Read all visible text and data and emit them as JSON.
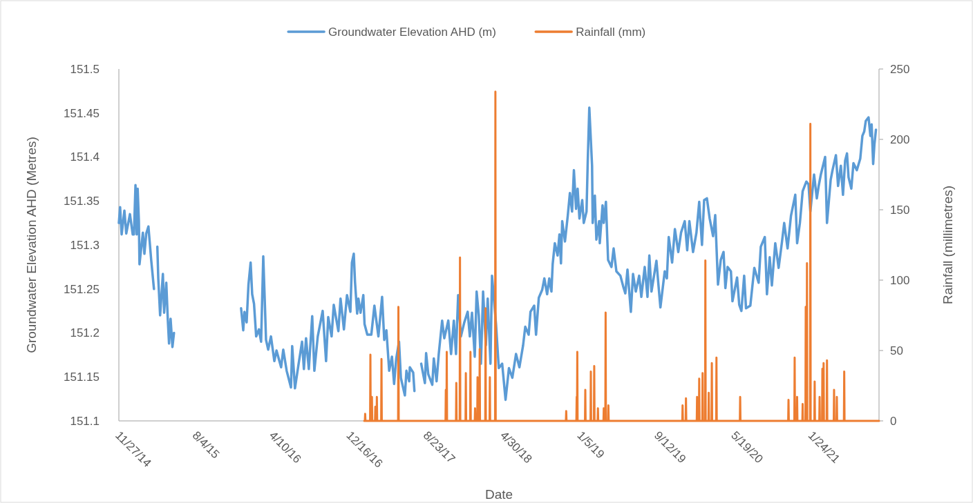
{
  "chart_data": {
    "type": "line",
    "xlabel": "Date",
    "ylabel": "Groundwater Elevation AHD (Metres)",
    "y2label": "Rainfall (millimetres)",
    "legend": "top",
    "xlim": [
      "2014-11-27",
      "2021-08-31"
    ],
    "xticks": [
      {
        "value": "2014-11-27",
        "label": "11/27/14"
      },
      {
        "value": "2015-08-04",
        "label": "8/4/15"
      },
      {
        "value": "2016-04-10",
        "label": "4/10/16"
      },
      {
        "value": "2016-12-16",
        "label": "12/16/16"
      },
      {
        "value": "2017-08-23",
        "label": "8/23/17"
      },
      {
        "value": "2018-04-30",
        "label": "4/30/18"
      },
      {
        "value": "2019-01-05",
        "label": "1/5/19"
      },
      {
        "value": "2019-09-12",
        "label": "9/12/19"
      },
      {
        "value": "2020-05-19",
        "label": "5/19/20"
      },
      {
        "value": "2021-01-24",
        "label": "1/24/21"
      }
    ],
    "ylim": [
      151.1,
      151.5
    ],
    "yticks": [
      151.1,
      151.15,
      151.2,
      151.25,
      151.3,
      151.35,
      151.4,
      151.45,
      151.5
    ],
    "y2lim": [
      0,
      250
    ],
    "y2ticks": [
      0,
      50,
      100,
      150,
      200,
      250
    ],
    "series": [
      {
        "name": "Groundwater Elevation AHD (m)",
        "color": "#5b9bd5",
        "x": [
          "2014-11-27",
          "2014-12-01",
          "2014-12-06",
          "2014-12-15",
          "2014-12-21",
          "2015-01-02",
          "2015-01-11",
          "2015-01-15",
          "2015-01-20",
          "2015-01-24",
          "2015-01-27",
          "2015-01-31",
          "2015-02-02",
          "2015-02-13",
          "2015-02-18",
          "2015-02-24",
          "2015-03-03",
          "2015-03-12",
          "2015-03-21",
          "2015-03-26",
          "2015-04-01",
          "2015-04-04",
          "2015-04-10",
          "2015-04-19",
          "2015-04-23",
          "2015-04-30",
          "2015-05-05",
          "2015-05-09",
          "2015-05-14",
          "2015-05-20",
          "2015-05-25",
          "2015-07-01",
          "2015-12-29",
          "2016-01-05",
          "2016-01-09",
          "2016-01-16",
          "2016-01-20",
          "2016-01-22",
          "2016-01-29",
          "2016-02-03",
          "2016-02-09",
          "2016-02-16",
          "2016-02-25",
          "2016-03-03",
          "2016-03-10",
          "2016-03-16",
          "2016-03-19",
          "2016-03-26",
          "2016-04-04",
          "2016-04-15",
          "2016-04-22",
          "2016-05-07",
          "2016-05-14",
          "2016-05-25",
          "2016-06-08",
          "2016-06-12",
          "2016-06-21",
          "2016-07-02",
          "2016-07-14",
          "2016-07-20",
          "2016-07-27",
          "2016-08-05",
          "2016-08-16",
          "2016-08-23",
          "2016-09-03",
          "2016-09-19",
          "2016-09-30",
          "2016-10-07",
          "2016-10-18",
          "2016-10-25",
          "2016-11-09",
          "2016-11-16",
          "2016-11-27",
          "2016-12-07",
          "2016-12-18",
          "2016-12-23",
          "2016-12-29",
          "2017-01-02",
          "2017-01-09",
          "2017-01-13",
          "2017-01-20",
          "2017-01-29",
          "2017-02-02",
          "2017-02-11",
          "2017-02-24",
          "2017-03-06",
          "2017-03-19",
          "2017-03-31",
          "2017-04-07",
          "2017-04-14",
          "2017-04-23",
          "2017-05-02",
          "2017-05-09",
          "2017-05-16",
          "2017-05-25",
          "2017-05-31",
          "2017-06-13",
          "2017-06-18",
          "2017-06-27",
          "2017-06-29",
          "2017-07-10",
          "2017-07-14",
          "2017-07-20",
          "2017-08-05",
          "2017-08-17",
          "2017-08-21",
          "2017-08-28",
          "2017-09-10",
          "2017-09-15",
          "2017-09-24",
          "2017-10-01",
          "2017-10-12",
          "2017-10-19",
          "2017-11-01",
          "2017-11-10",
          "2017-11-19",
          "2017-11-26",
          "2017-12-03",
          "2017-12-12",
          "2017-12-23",
          "2018-01-03",
          "2018-01-10",
          "2018-01-17",
          "2018-01-26",
          "2018-02-01",
          "2018-02-08",
          "2018-02-15",
          "2018-02-22",
          "2018-03-03",
          "2018-03-09",
          "2018-03-18",
          "2018-03-23",
          "2018-04-05",
          "2018-04-14",
          "2018-04-25",
          "2018-05-06",
          "2018-05-17",
          "2018-05-28",
          "2018-06-09",
          "2018-06-20",
          "2018-07-02",
          "2018-07-09",
          "2018-07-20",
          "2018-07-26",
          "2018-08-07",
          "2018-08-13",
          "2018-08-22",
          "2018-09-02",
          "2018-09-09",
          "2018-09-18",
          "2018-09-25",
          "2018-10-02",
          "2018-10-06",
          "2018-10-13",
          "2018-10-22",
          "2018-10-28",
          "2018-11-02",
          "2018-11-06",
          "2018-11-15",
          "2018-11-24",
          "2018-12-01",
          "2018-12-08",
          "2018-12-14",
          "2018-12-21",
          "2018-12-26",
          "2019-01-01",
          "2019-01-10",
          "2019-01-15",
          "2019-01-24",
          "2019-01-28",
          "2019-02-02",
          "2019-02-11",
          "2019-02-13",
          "2019-02-20",
          "2019-02-25",
          "2019-03-06",
          "2019-03-08",
          "2019-03-17",
          "2019-03-21",
          "2019-03-28",
          "2019-04-04",
          "2019-04-15",
          "2019-04-22",
          "2019-05-01",
          "2019-05-14",
          "2019-05-23",
          "2019-05-30",
          "2019-06-06",
          "2019-06-17",
          "2019-06-24",
          "2019-07-03",
          "2019-07-14",
          "2019-07-21",
          "2019-08-01",
          "2019-08-10",
          "2019-08-16",
          "2019-08-23",
          "2019-09-08",
          "2019-09-14",
          "2019-09-21",
          "2019-10-05",
          "2019-10-12",
          "2019-10-18",
          "2019-10-29",
          "2019-11-07",
          "2019-11-18",
          "2019-11-27",
          "2019-12-09",
          "2019-12-17",
          "2019-12-24",
          "2020-01-05",
          "2020-01-16",
          "2020-01-25",
          "2020-02-03",
          "2020-02-10",
          "2020-02-19",
          "2020-02-28",
          "2020-03-10",
          "2020-03-17",
          "2020-03-26",
          "2020-04-04",
          "2020-04-13",
          "2020-04-19",
          "2020-04-26",
          "2020-05-07",
          "2020-05-12",
          "2020-05-27",
          "2020-06-03",
          "2020-06-10",
          "2020-06-19",
          "2020-06-25",
          "2020-07-09",
          "2020-07-22",
          "2020-08-05",
          "2020-08-12",
          "2020-08-25",
          "2020-09-01",
          "2020-09-10",
          "2020-09-17",
          "2020-09-28",
          "2020-10-09",
          "2020-10-20",
          "2020-10-27",
          "2020-11-07",
          "2020-11-18",
          "2020-12-02",
          "2020-12-08",
          "2020-12-17",
          "2020-12-26",
          "2021-01-07",
          "2021-01-14",
          "2021-01-20",
          "2021-02-01",
          "2021-02-10",
          "2021-02-16",
          "2021-02-23",
          "2021-03-09",
          "2021-03-15",
          "2021-03-27",
          "2021-04-02",
          "2021-04-13",
          "2021-04-20",
          "2021-04-29",
          "2021-05-06",
          "2021-05-13",
          "2021-05-19",
          "2021-05-24",
          "2021-06-02",
          "2021-06-09",
          "2021-06-20",
          "2021-07-01",
          "2021-07-08",
          "2021-07-14",
          "2021-07-19",
          "2021-07-28",
          "2021-08-03",
          "2021-08-07",
          "2021-08-12",
          "2021-08-16",
          "2021-08-21"
        ],
        "values": [
          151.325,
          151.343,
          151.312,
          151.339,
          151.313,
          151.335,
          151.312,
          151.312,
          151.368,
          151.312,
          151.364,
          151.327,
          151.278,
          151.314,
          151.29,
          151.313,
          151.321,
          151.283,
          151.25,
          null,
          151.298,
          151.262,
          151.22,
          151.267,
          151.223,
          151.257,
          151.215,
          151.188,
          151.216,
          151.184,
          151.2,
          null,
          151.228,
          151.203,
          151.224,
          151.212,
          151.241,
          151.255,
          151.28,
          151.244,
          151.233,
          151.196,
          151.204,
          151.19,
          151.287,
          151.225,
          151.192,
          151.181,
          151.196,
          151.168,
          151.18,
          151.161,
          151.181,
          151.157,
          151.138,
          151.185,
          151.137,
          151.163,
          151.19,
          151.159,
          151.194,
          151.159,
          151.219,
          151.157,
          151.196,
          151.225,
          151.168,
          151.218,
          151.196,
          151.232,
          151.202,
          151.239,
          151.204,
          151.243,
          151.224,
          151.28,
          151.29,
          151.258,
          151.222,
          151.239,
          151.223,
          151.243,
          151.21,
          151.198,
          151.198,
          151.231,
          151.196,
          151.241,
          151.192,
          151.203,
          151.157,
          151.173,
          151.142,
          151.171,
          151.19,
          151.149,
          151.129,
          151.157,
          151.145,
          151.161,
          151.155,
          151.134,
          null,
          151.165,
          151.143,
          151.177,
          151.153,
          151.141,
          151.171,
          151.145,
          151.176,
          151.214,
          151.194,
          151.214,
          151.176,
          151.214,
          151.176,
          151.243,
          151.196,
          151.212,
          151.224,
          151.196,
          151.223,
          151.173,
          151.247,
          151.22,
          151.165,
          151.247,
          151.186,
          151.239,
          151.165,
          151.265,
          151.21,
          151.16,
          151.165,
          151.124,
          151.16,
          151.149,
          151.176,
          151.161,
          151.186,
          151.207,
          151.198,
          151.224,
          151.231,
          151.198,
          151.24,
          151.249,
          151.262,
          151.244,
          151.262,
          151.247,
          151.278,
          151.302,
          151.288,
          151.312,
          151.279,
          151.327,
          151.304,
          151.333,
          151.359,
          151.338,
          151.385,
          151.341,
          151.364,
          151.33,
          151.351,
          151.325,
          151.338,
          151.396,
          151.456,
          151.39,
          151.325,
          151.356,
          151.306,
          151.327,
          151.302,
          151.345,
          151.325,
          151.349,
          151.283,
          151.275,
          151.296,
          151.27,
          151.265,
          151.253,
          151.245,
          151.272,
          151.224,
          151.267,
          151.247,
          151.265,
          151.241,
          151.275,
          151.241,
          151.288,
          151.247,
          151.282,
          151.257,
          151.229,
          151.27,
          151.262,
          151.309,
          151.28,
          151.318,
          151.292,
          151.314,
          151.327,
          151.294,
          151.327,
          151.292,
          151.314,
          151.349,
          151.3,
          151.351,
          151.353,
          151.33,
          151.31,
          151.334,
          151.255,
          151.283,
          151.292,
          151.251,
          151.275,
          151.27,
          151.236,
          151.263,
          151.232,
          151.225,
          151.265,
          151.228,
          151.231,
          151.274,
          151.257,
          151.298,
          151.309,
          151.244,
          151.286,
          151.254,
          151.302,
          151.274,
          151.304,
          151.325,
          151.296,
          151.333,
          151.357,
          151.302,
          151.325,
          151.361,
          151.372,
          151.369,
          151.338,
          151.38,
          151.353,
          151.367,
          151.38,
          151.4,
          151.325,
          151.374,
          151.385,
          151.402,
          151.367,
          151.39,
          151.357,
          151.396,
          151.404,
          151.377,
          151.364,
          151.393,
          151.385,
          151.398,
          151.424,
          151.429,
          151.441,
          151.445,
          151.424,
          151.437,
          151.392,
          151.414,
          151.431
        ]
      },
      {
        "name": "Rainfall (mm)",
        "color": "#ed7d31",
        "axis": "y2",
        "x": [
          "2017-02-01",
          "2017-02-03",
          "2017-02-04",
          "2017-02-05",
          "2017-02-20",
          "2017-02-21",
          "2017-02-22",
          "2017-02-25",
          "2017-02-26",
          "2017-02-27",
          "2017-03-08",
          "2017-03-09",
          "2017-03-10",
          "2017-03-13",
          "2017-03-14",
          "2017-03-15",
          "2017-03-28",
          "2017-03-29",
          "2017-03-30",
          "2017-05-22",
          "2017-05-23",
          "2017-05-24",
          "2017-10-23",
          "2017-10-24",
          "2017-10-25",
          "2017-10-26",
          "2017-10-27",
          "2017-10-28",
          "2017-11-26",
          "2017-11-27",
          "2017-11-28",
          "2017-12-08",
          "2017-12-09",
          "2017-12-10",
          "2017-12-27",
          "2017-12-28",
          "2017-12-29",
          "2018-01-11",
          "2018-01-12",
          "2018-01-13",
          "2018-01-26",
          "2018-01-27",
          "2018-01-28",
          "2018-02-03",
          "2018-02-04",
          "2018-02-05",
          "2018-02-10",
          "2018-02-11",
          "2018-02-12",
          "2018-03-01",
          "2018-03-02",
          "2018-03-03",
          "2018-03-15",
          "2018-03-16",
          "2018-03-17",
          "2018-04-02",
          "2018-04-03",
          "2018-04-04",
          "2018-11-18",
          "2018-11-19",
          "2018-11-20",
          "2018-12-22",
          "2018-12-23",
          "2018-12-24",
          "2018-12-25",
          "2018-12-26",
          "2019-01-19",
          "2019-01-20",
          "2019-01-21",
          "2019-02-06",
          "2019-02-07",
          "2019-02-08",
          "2019-02-17",
          "2019-02-18",
          "2019-02-19",
          "2019-03-01",
          "2019-03-02",
          "2019-03-03",
          "2019-03-20",
          "2019-03-21",
          "2019-03-22",
          "2019-03-26",
          "2019-03-27",
          "2019-03-28",
          "2019-04-04",
          "2019-04-05",
          "2019-04-06",
          "2019-12-01",
          "2019-12-02",
          "2019-12-03",
          "2019-12-12",
          "2019-12-13",
          "2019-12-14",
          "2020-01-17",
          "2020-01-18",
          "2020-01-19",
          "2020-01-24",
          "2020-01-25",
          "2020-01-26",
          "2020-02-04",
          "2020-02-05",
          "2020-02-06",
          "2020-02-13",
          "2020-02-14",
          "2020-02-15",
          "2020-02-24",
          "2020-02-25",
          "2020-02-26",
          "2020-03-05",
          "2020-03-06",
          "2020-03-07",
          "2020-03-20",
          "2020-03-21",
          "2020-03-22",
          "2020-06-05",
          "2020-06-06",
          "2020-06-07",
          "2020-11-09",
          "2020-11-10",
          "2020-11-11",
          "2020-11-29",
          "2020-11-30",
          "2020-12-01",
          "2020-12-07",
          "2020-12-08",
          "2020-12-09",
          "2020-12-25",
          "2020-12-26",
          "2020-12-27",
          "2021-01-04",
          "2021-01-05",
          "2021-01-06",
          "2021-01-08",
          "2021-01-09",
          "2021-01-10",
          "2021-01-19",
          "2021-01-20",
          "2021-01-21",
          "2021-02-02",
          "2021-02-03",
          "2021-02-04",
          "2021-02-18",
          "2021-02-19",
          "2021-02-20",
          "2021-02-27",
          "2021-02-28",
          "2021-03-01",
          "2021-03-03",
          "2021-03-04",
          "2021-03-05",
          "2021-03-14",
          "2021-03-15",
          "2021-03-16",
          "2021-04-06",
          "2021-04-07",
          "2021-04-08",
          "2021-04-15",
          "2021-04-16",
          "2021-04-17",
          "2021-05-09",
          "2021-05-10",
          "2021-05-11",
          "2021-08-31"
        ],
        "values": [
          0,
          0,
          5,
          0,
          0,
          47,
          0,
          0,
          17,
          0,
          0,
          10,
          0,
          0,
          17,
          0,
          0,
          44,
          0,
          0,
          81,
          0,
          0,
          22,
          0,
          0,
          49,
          0,
          0,
          27,
          0,
          0,
          116,
          0,
          0,
          34,
          0,
          0,
          49,
          0,
          0,
          9,
          0,
          0,
          31,
          0,
          0,
          51,
          0,
          0,
          80,
          0,
          0,
          31,
          0,
          0,
          234,
          0,
          0,
          7,
          0,
          0,
          17,
          0,
          49,
          0,
          0,
          22,
          0,
          0,
          35,
          0,
          0,
          39,
          0,
          0,
          9,
          0,
          0,
          9,
          0,
          0,
          77,
          0,
          0,
          11,
          0,
          0,
          11,
          0,
          0,
          16,
          0,
          0,
          17,
          0,
          0,
          30,
          0,
          0,
          34,
          0,
          0,
          114,
          0,
          0,
          20,
          0,
          0,
          41,
          0,
          0,
          45,
          0,
          0,
          17,
          0,
          0,
          15,
          0,
          0,
          45,
          0,
          0,
          17,
          0,
          0,
          12,
          0,
          0,
          81,
          0,
          0,
          112,
          0,
          0,
          211,
          0,
          0,
          28,
          0,
          0,
          17,
          0,
          0,
          37,
          0,
          0,
          41,
          0,
          0,
          43,
          0,
          0,
          22,
          0,
          0,
          17,
          0,
          0,
          35,
          0,
          0
        ]
      }
    ]
  }
}
